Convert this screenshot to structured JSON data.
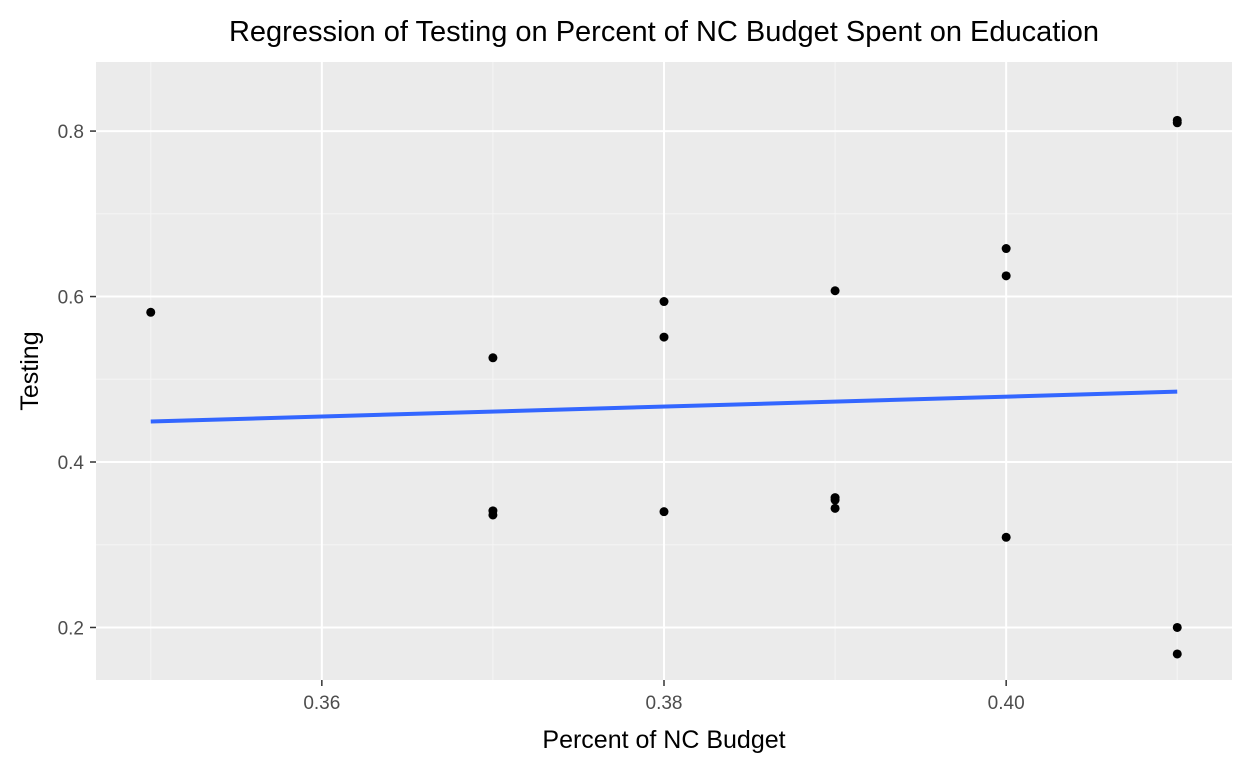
{
  "chart_data": {
    "type": "scatter",
    "title": "Regression of Testing on Percent of NC Budget Spent on Education",
    "xlabel": "Percent of NC Budget",
    "ylabel": "Testing",
    "xlim": [
      0.3468,
      0.4132
    ],
    "ylim": [
      0.1365,
      0.8835
    ],
    "x_ticks": [
      0.36,
      0.38,
      0.4
    ],
    "x_tick_labels": [
      "0.36",
      "0.38",
      "0.40"
    ],
    "y_ticks": [
      0.2,
      0.4,
      0.6,
      0.8
    ],
    "y_tick_labels": [
      "0.2",
      "0.4",
      "0.6",
      "0.8"
    ],
    "grid": true,
    "legend": "none",
    "points": [
      {
        "x": 0.35,
        "y": 0.581
      },
      {
        "x": 0.37,
        "y": 0.526
      },
      {
        "x": 0.37,
        "y": 0.341
      },
      {
        "x": 0.37,
        "y": 0.336
      },
      {
        "x": 0.38,
        "y": 0.594
      },
      {
        "x": 0.38,
        "y": 0.551
      },
      {
        "x": 0.38,
        "y": 0.34
      },
      {
        "x": 0.39,
        "y": 0.607
      },
      {
        "x": 0.39,
        "y": 0.357
      },
      {
        "x": 0.39,
        "y": 0.354
      },
      {
        "x": 0.39,
        "y": 0.344
      },
      {
        "x": 0.4,
        "y": 0.658
      },
      {
        "x": 0.4,
        "y": 0.625
      },
      {
        "x": 0.4,
        "y": 0.309
      },
      {
        "x": 0.41,
        "y": 0.813
      },
      {
        "x": 0.41,
        "y": 0.81
      },
      {
        "x": 0.41,
        "y": 0.2
      },
      {
        "x": 0.41,
        "y": 0.168
      }
    ],
    "regression_line": {
      "x": [
        0.35,
        0.41
      ],
      "y": [
        0.449,
        0.485
      ]
    },
    "colors": {
      "panel_background": "#EBEBEB",
      "grid_major": "#FFFFFF",
      "grid_minor": "#F5F5F5",
      "points": "#000000",
      "regression_line": "#3366FF"
    }
  }
}
